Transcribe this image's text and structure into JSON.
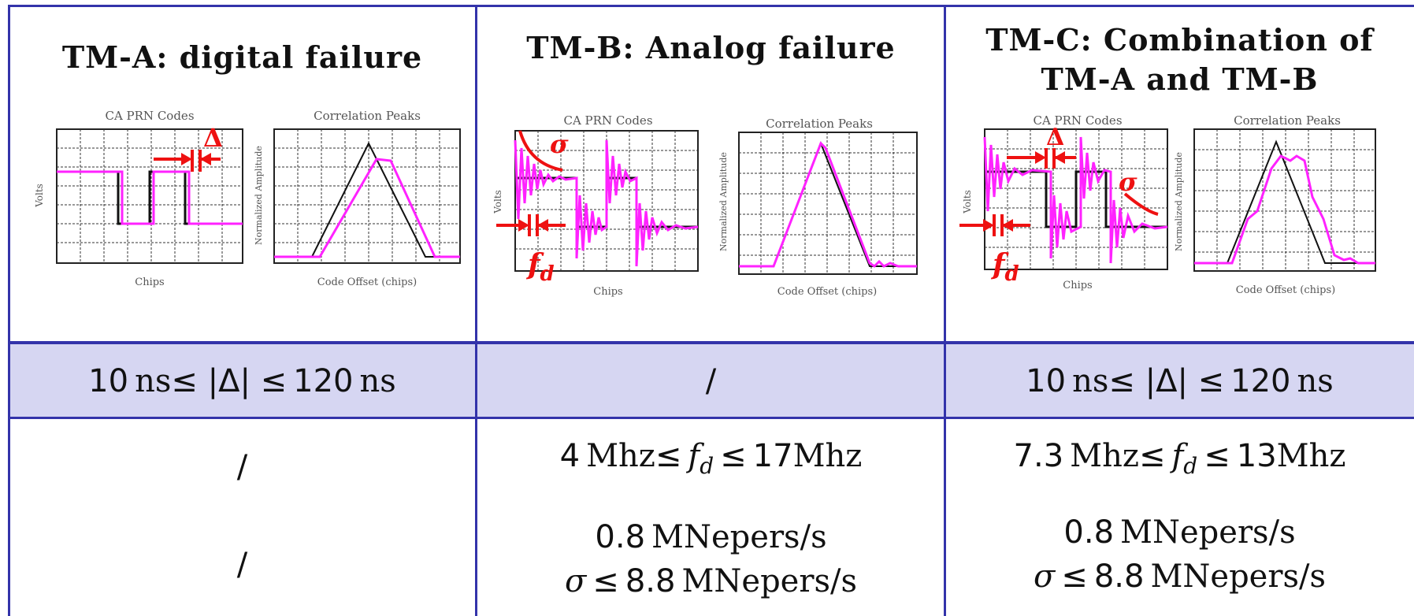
{
  "columns": [
    {
      "title_lines": [
        "TM-A: digital failure"
      ],
      "left_plot": {
        "title": "CA PRN Codes",
        "ylabel": "Volts",
        "xlabel": "Chips",
        "annotations": [
          "Δ"
        ]
      },
      "right_plot": {
        "title": "Correlation Peaks",
        "ylabel": "Normalized Amplitude",
        "xlabel": "Code Offset (chips)"
      },
      "row_delta": {
        "prefix": "10",
        "unit_a": "ns",
        "mid": "≤ |Δ| ≤",
        "value_b": "120",
        "unit_b": "ns"
      },
      "row_fd": {
        "text": "/"
      },
      "row_sigma": {
        "text": "/"
      }
    },
    {
      "title_lines": [
        "TM-B: Analog failure"
      ],
      "left_plot": {
        "title": "CA PRN Codes",
        "ylabel": "Volts",
        "xlabel": "Chips",
        "annotations": [
          "σ",
          "fd"
        ]
      },
      "right_plot": {
        "title": "Correlation Peaks",
        "ylabel": "Normalized Amplitude",
        "xlabel": "Code Offset (chips)"
      },
      "row_delta": {
        "text": "/"
      },
      "row_fd": {
        "value_a": "4",
        "unit_a": "Mhz",
        "mid": "≤",
        "var": "f",
        "sub": "d",
        "rel": "≤",
        "value_b": "17",
        "unit_b": "Mhz"
      },
      "row_sigma": {
        "line1_value": "0.8",
        "line1_unit": "MNepers/s",
        "var": "σ",
        "rel": "≤",
        "line2_value": "8.8",
        "line2_unit": "MNepers/s"
      }
    },
    {
      "title_lines": [
        "TM-C: Combination of",
        "TM-A and TM-B"
      ],
      "left_plot": {
        "title": "CA PRN Codes",
        "ylabel": "Volts",
        "xlabel": "Chips",
        "annotations": [
          "Δ",
          "σ",
          "fd"
        ]
      },
      "right_plot": {
        "title": "Correlation Peaks",
        "ylabel": "Normalized Amplitude",
        "xlabel": "Code Offset (chips)"
      },
      "row_delta": {
        "prefix": "10",
        "unit_a": "ns",
        "mid": "≤ |Δ| ≤",
        "value_b": "120",
        "unit_b": "ns"
      },
      "row_fd": {
        "value_a": "7.3",
        "unit_a": "Mhz",
        "mid": "≤",
        "var": "f",
        "sub": "d",
        "rel": "≤",
        "value_b": "13",
        "unit_b": "Mhz"
      },
      "row_sigma": {
        "line1_value": "0.8",
        "line1_unit": "MNepers/s",
        "var": "σ",
        "rel": "≤",
        "line2_value": "8.8",
        "line2_unit": "MNepers/s"
      }
    }
  ],
  "colors": {
    "border": "#3333aa",
    "header_band": "#d6d6f2",
    "signal_magenta": "#ff22ff",
    "annotation_red": "#ee1111",
    "ideal_black": "#111111"
  }
}
